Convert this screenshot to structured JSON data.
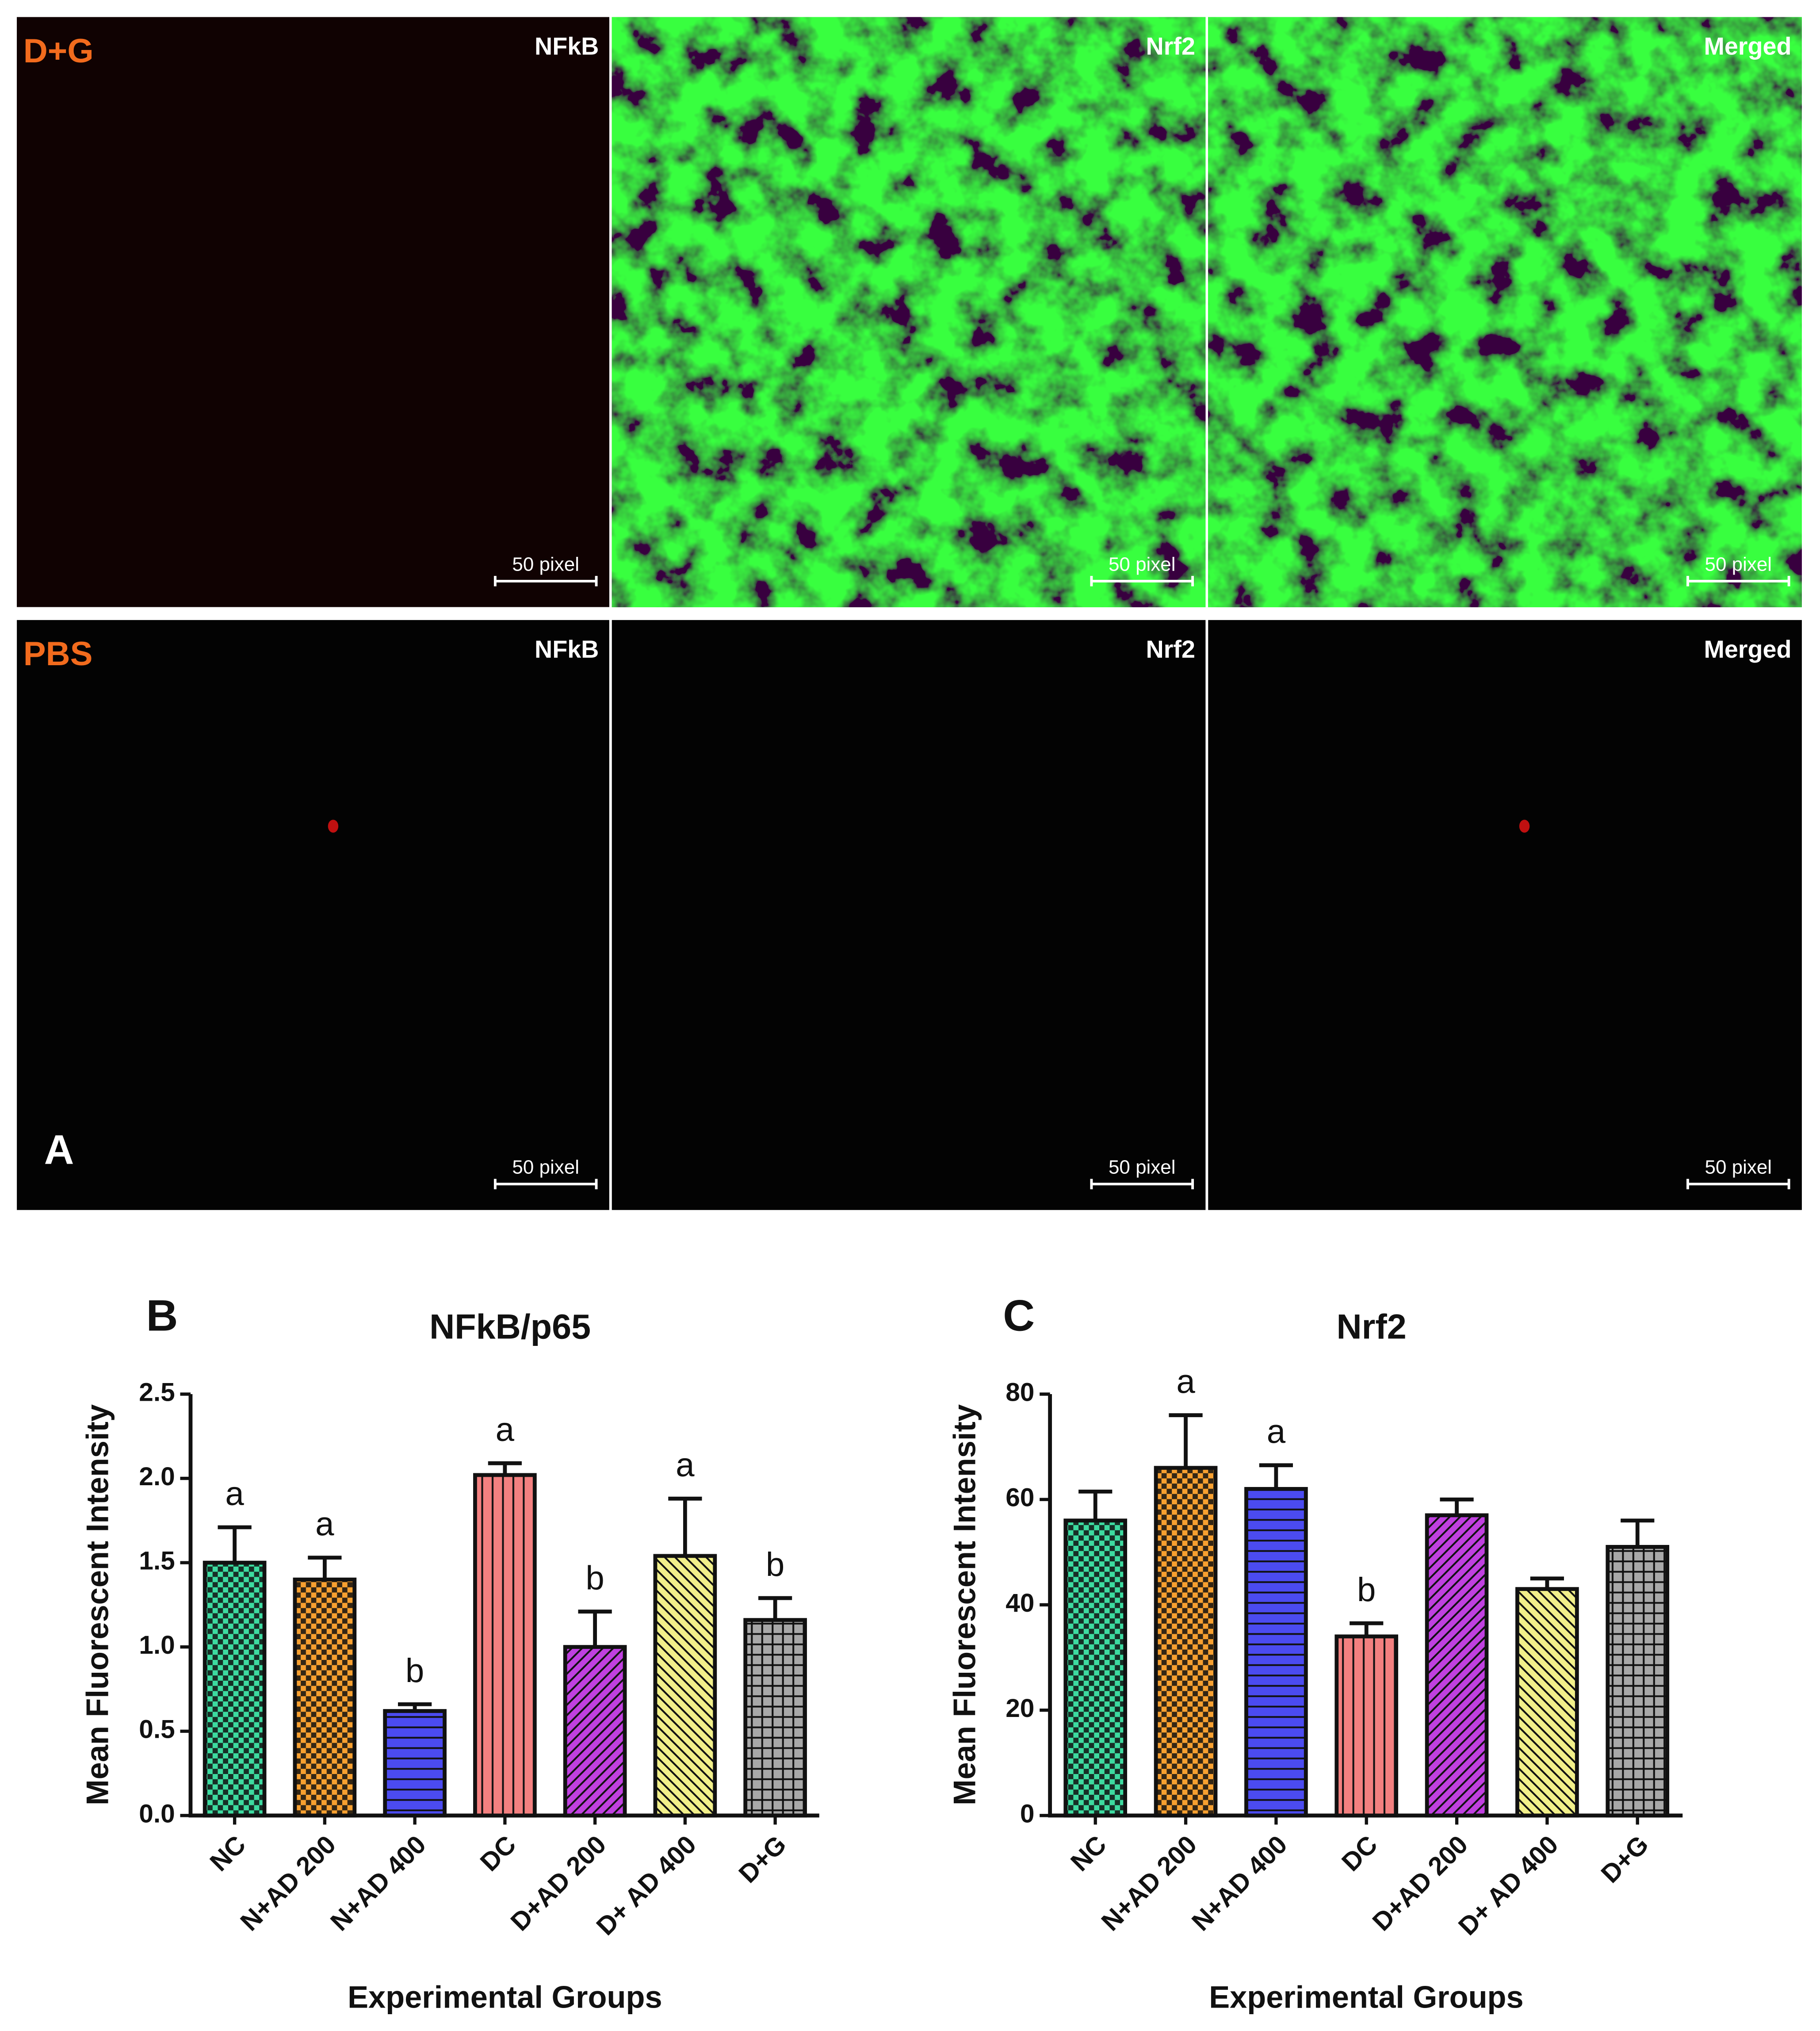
{
  "figure": {
    "panel_a": {
      "label": "A",
      "rows": [
        {
          "group": "D+G",
          "images": [
            {
              "channel": "NFkB",
              "scale_bar": "50 pixel"
            },
            {
              "channel": "Nrf2",
              "scale_bar": "50 pixel"
            },
            {
              "channel": "Merged",
              "scale_bar": "50 pixel"
            }
          ]
        },
        {
          "group": "PBS",
          "images": [
            {
              "channel": "NFkB",
              "scale_bar": "50 pixel"
            },
            {
              "channel": "Nrf2",
              "scale_bar": "50 pixel"
            },
            {
              "channel": "Merged",
              "scale_bar": "50 pixel"
            }
          ]
        }
      ]
    }
  },
  "chart_data": [
    {
      "type": "bar",
      "panel_label": "B",
      "title": "NFkB/p65",
      "x_label": "Experimental Groups",
      "y_label": "Mean Fluorescent Intensity",
      "categories": [
        "NC",
        "N+AD 200",
        "N+AD 400",
        "DC",
        "D+AD 200",
        "D+ AD 400",
        "D+G"
      ],
      "values": [
        1.5,
        1.4,
        0.62,
        2.02,
        1.0,
        1.54,
        1.16
      ],
      "errors": [
        0.21,
        0.13,
        0.04,
        0.07,
        0.21,
        0.34,
        0.13
      ],
      "annotations": [
        "a",
        "a",
        "b",
        "a",
        "b",
        "a",
        "b"
      ],
      "colors": [
        "#3ddba0",
        "#f7a030",
        "#4b4bf0",
        "#f38080",
        "#c040e0",
        "#f2f08a",
        "#a8a8a8"
      ],
      "patterns": [
        "checker",
        "checker",
        "hlines",
        "vlines",
        "diag",
        "antidiag",
        "grid"
      ],
      "ylim": [
        0,
        2.5
      ],
      "yticks": [
        {
          "value": 0,
          "label": "0.0"
        },
        0.5,
        {
          "value": 1,
          "label": "1.0"
        },
        1.5,
        {
          "value": 2,
          "label": "2.0"
        },
        2.5
      ]
    },
    {
      "type": "bar",
      "panel_label": "C",
      "title": "Nrf2",
      "x_label": "Experimental Groups",
      "y_label": "Mean Fluorescent Intensity",
      "categories": [
        "NC",
        "N+AD 200",
        "N+AD 400",
        "DC",
        "D+AD 200",
        "D+ AD 400",
        "D+G"
      ],
      "values": [
        56,
        66,
        62,
        34,
        57,
        43,
        51
      ],
      "errors": [
        5.5,
        10,
        4.5,
        2.5,
        3,
        2,
        5
      ],
      "annotations": [
        null,
        "a",
        "a",
        "b",
        null,
        null,
        null
      ],
      "colors": [
        "#3ddba0",
        "#f7a030",
        "#4b4bf0",
        "#f38080",
        "#c040e0",
        "#f2f08a",
        "#a8a8a8"
      ],
      "patterns": [
        "checker",
        "checker",
        "hlines",
        "vlines",
        "diag",
        "antidiag",
        "grid"
      ],
      "ylim": [
        0,
        80
      ],
      "yticks": [
        0,
        20,
        40,
        60,
        80
      ]
    }
  ]
}
